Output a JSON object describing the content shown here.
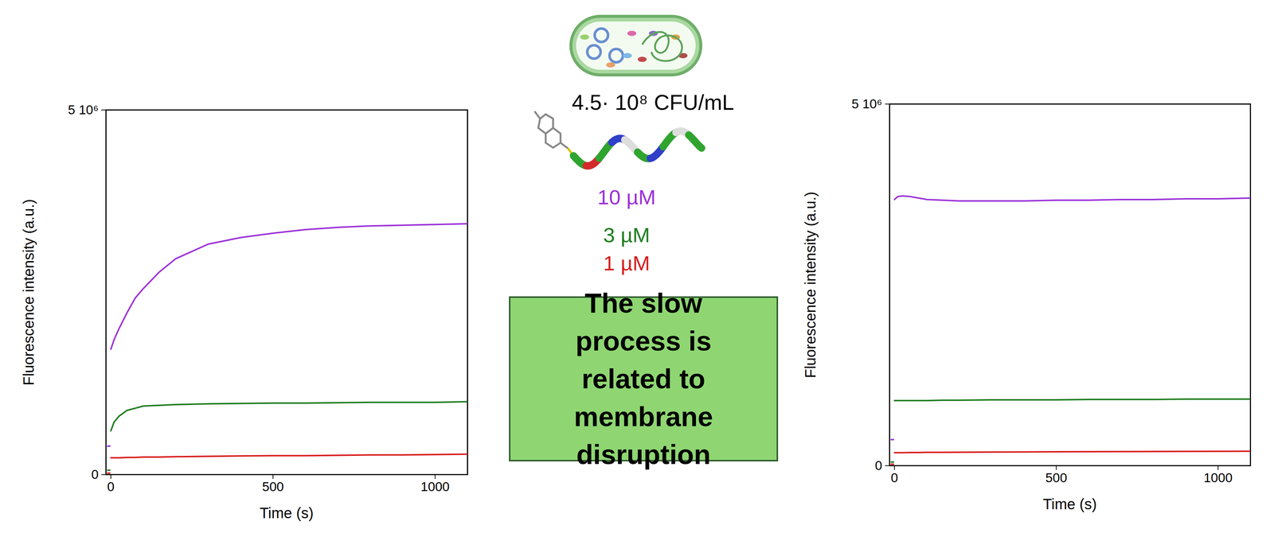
{
  "chart_data": [
    {
      "type": "line",
      "x_label": "Time (s)",
      "y_label": "Fluorescence intensity (a.u.)",
      "xlim": [
        -15,
        1100
      ],
      "xticks": [
        0,
        500,
        1000
      ],
      "ylim": [
        0,
        5000000
      ],
      "yticks": [
        0,
        {
          "value": 5000000,
          "label": "5 10⁶"
        }
      ],
      "x": [
        -10,
        -3,
        -1,
        0,
        10,
        25,
        50,
        75,
        100,
        150,
        200,
        300,
        400,
        500,
        600,
        700,
        800,
        900,
        1000,
        1100
      ],
      "series": [
        {
          "name": "10 µM",
          "color": "#9b30d9",
          "values": [
            390000,
            390000,
            null,
            1720000,
            1850000,
            2000000,
            2220000,
            2420000,
            2550000,
            2780000,
            2960000,
            3160000,
            3250000,
            3310000,
            3360000,
            3390000,
            3410000,
            3420000,
            3430000,
            3440000
          ]
        },
        {
          "name": "3 µM",
          "color": "#1e7d1e",
          "values": [
            60000,
            60000,
            null,
            600000,
            720000,
            800000,
            880000,
            910000,
            940000,
            950000,
            960000,
            970000,
            975000,
            980000,
            980000,
            985000,
            990000,
            990000,
            990000,
            1000000
          ]
        },
        {
          "name": "1 µM",
          "color": "#d81c1c",
          "values": [
            20000,
            20000,
            null,
            230000,
            230000,
            230000,
            235000,
            235000,
            240000,
            240000,
            245000,
            250000,
            255000,
            260000,
            260000,
            265000,
            270000,
            270000,
            275000,
            280000
          ]
        }
      ]
    },
    {
      "type": "line",
      "x_label": "Time (s)",
      "y_label": "Fluorescence intensity (a.u.)",
      "xlim": [
        -15,
        1100
      ],
      "xticks": [
        0,
        500,
        1000
      ],
      "ylim": [
        0,
        5000000
      ],
      "yticks": [
        0,
        {
          "value": 5000000,
          "label": "5 10⁶"
        }
      ],
      "x": [
        -10,
        -3,
        -1,
        0,
        10,
        25,
        50,
        75,
        100,
        150,
        200,
        300,
        400,
        500,
        600,
        700,
        800,
        900,
        1000,
        1100
      ],
      "series": [
        {
          "name": "10 µM",
          "color": "#9b30d9",
          "values": [
            360000,
            360000,
            null,
            3680000,
            3720000,
            3730000,
            3720000,
            3700000,
            3680000,
            3670000,
            3660000,
            3660000,
            3660000,
            3670000,
            3670000,
            3680000,
            3680000,
            3690000,
            3690000,
            3700000
          ]
        },
        {
          "name": "3 µM",
          "color": "#1e7d1e",
          "values": [
            50000,
            50000,
            null,
            900000,
            900000,
            900000,
            900000,
            900000,
            900000,
            905000,
            905000,
            910000,
            910000,
            910000,
            915000,
            915000,
            915000,
            920000,
            920000,
            920000
          ]
        },
        {
          "name": "1 µM",
          "color": "#d81c1c",
          "values": [
            20000,
            20000,
            null,
            180000,
            180000,
            180000,
            182000,
            182000,
            184000,
            185000,
            186000,
            188000,
            190000,
            192000,
            193000,
            195000,
            196000,
            198000,
            199000,
            200000
          ]
        }
      ]
    }
  ],
  "annotations": {
    "cell_density": "4.5· 10⁸ CFU/mL",
    "box_text": "The slow process is related to membrane disruption"
  }
}
